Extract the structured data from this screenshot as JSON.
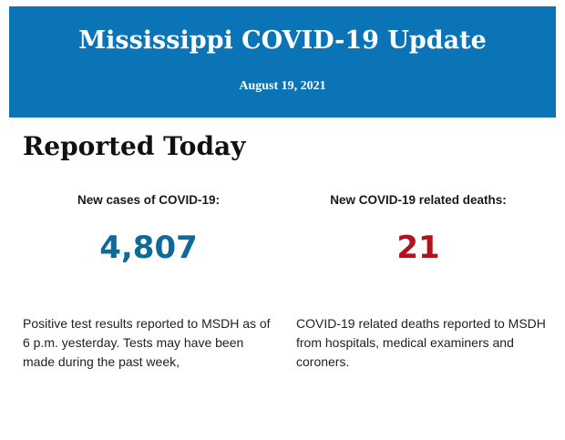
{
  "header": {
    "title": "Mississippi COVID-19 Update",
    "date": "August 19, 2021",
    "background_color": "#0a74b6"
  },
  "section": {
    "heading": "Reported Today"
  },
  "stats": {
    "cases": {
      "label": "New cases of COVID-19:",
      "value": "4,807",
      "color": "#0e6b99",
      "description": "Positive test results reported to MSDH as of 6 p.m. yesterday. Tests may have been made during the past week,"
    },
    "deaths": {
      "label": "New COVID-19 related deaths:",
      "value": "21",
      "color": "#b5121b",
      "description": "COVID-19 related deaths reported to MSDH from hospitals, medical examiners and coroners."
    }
  }
}
